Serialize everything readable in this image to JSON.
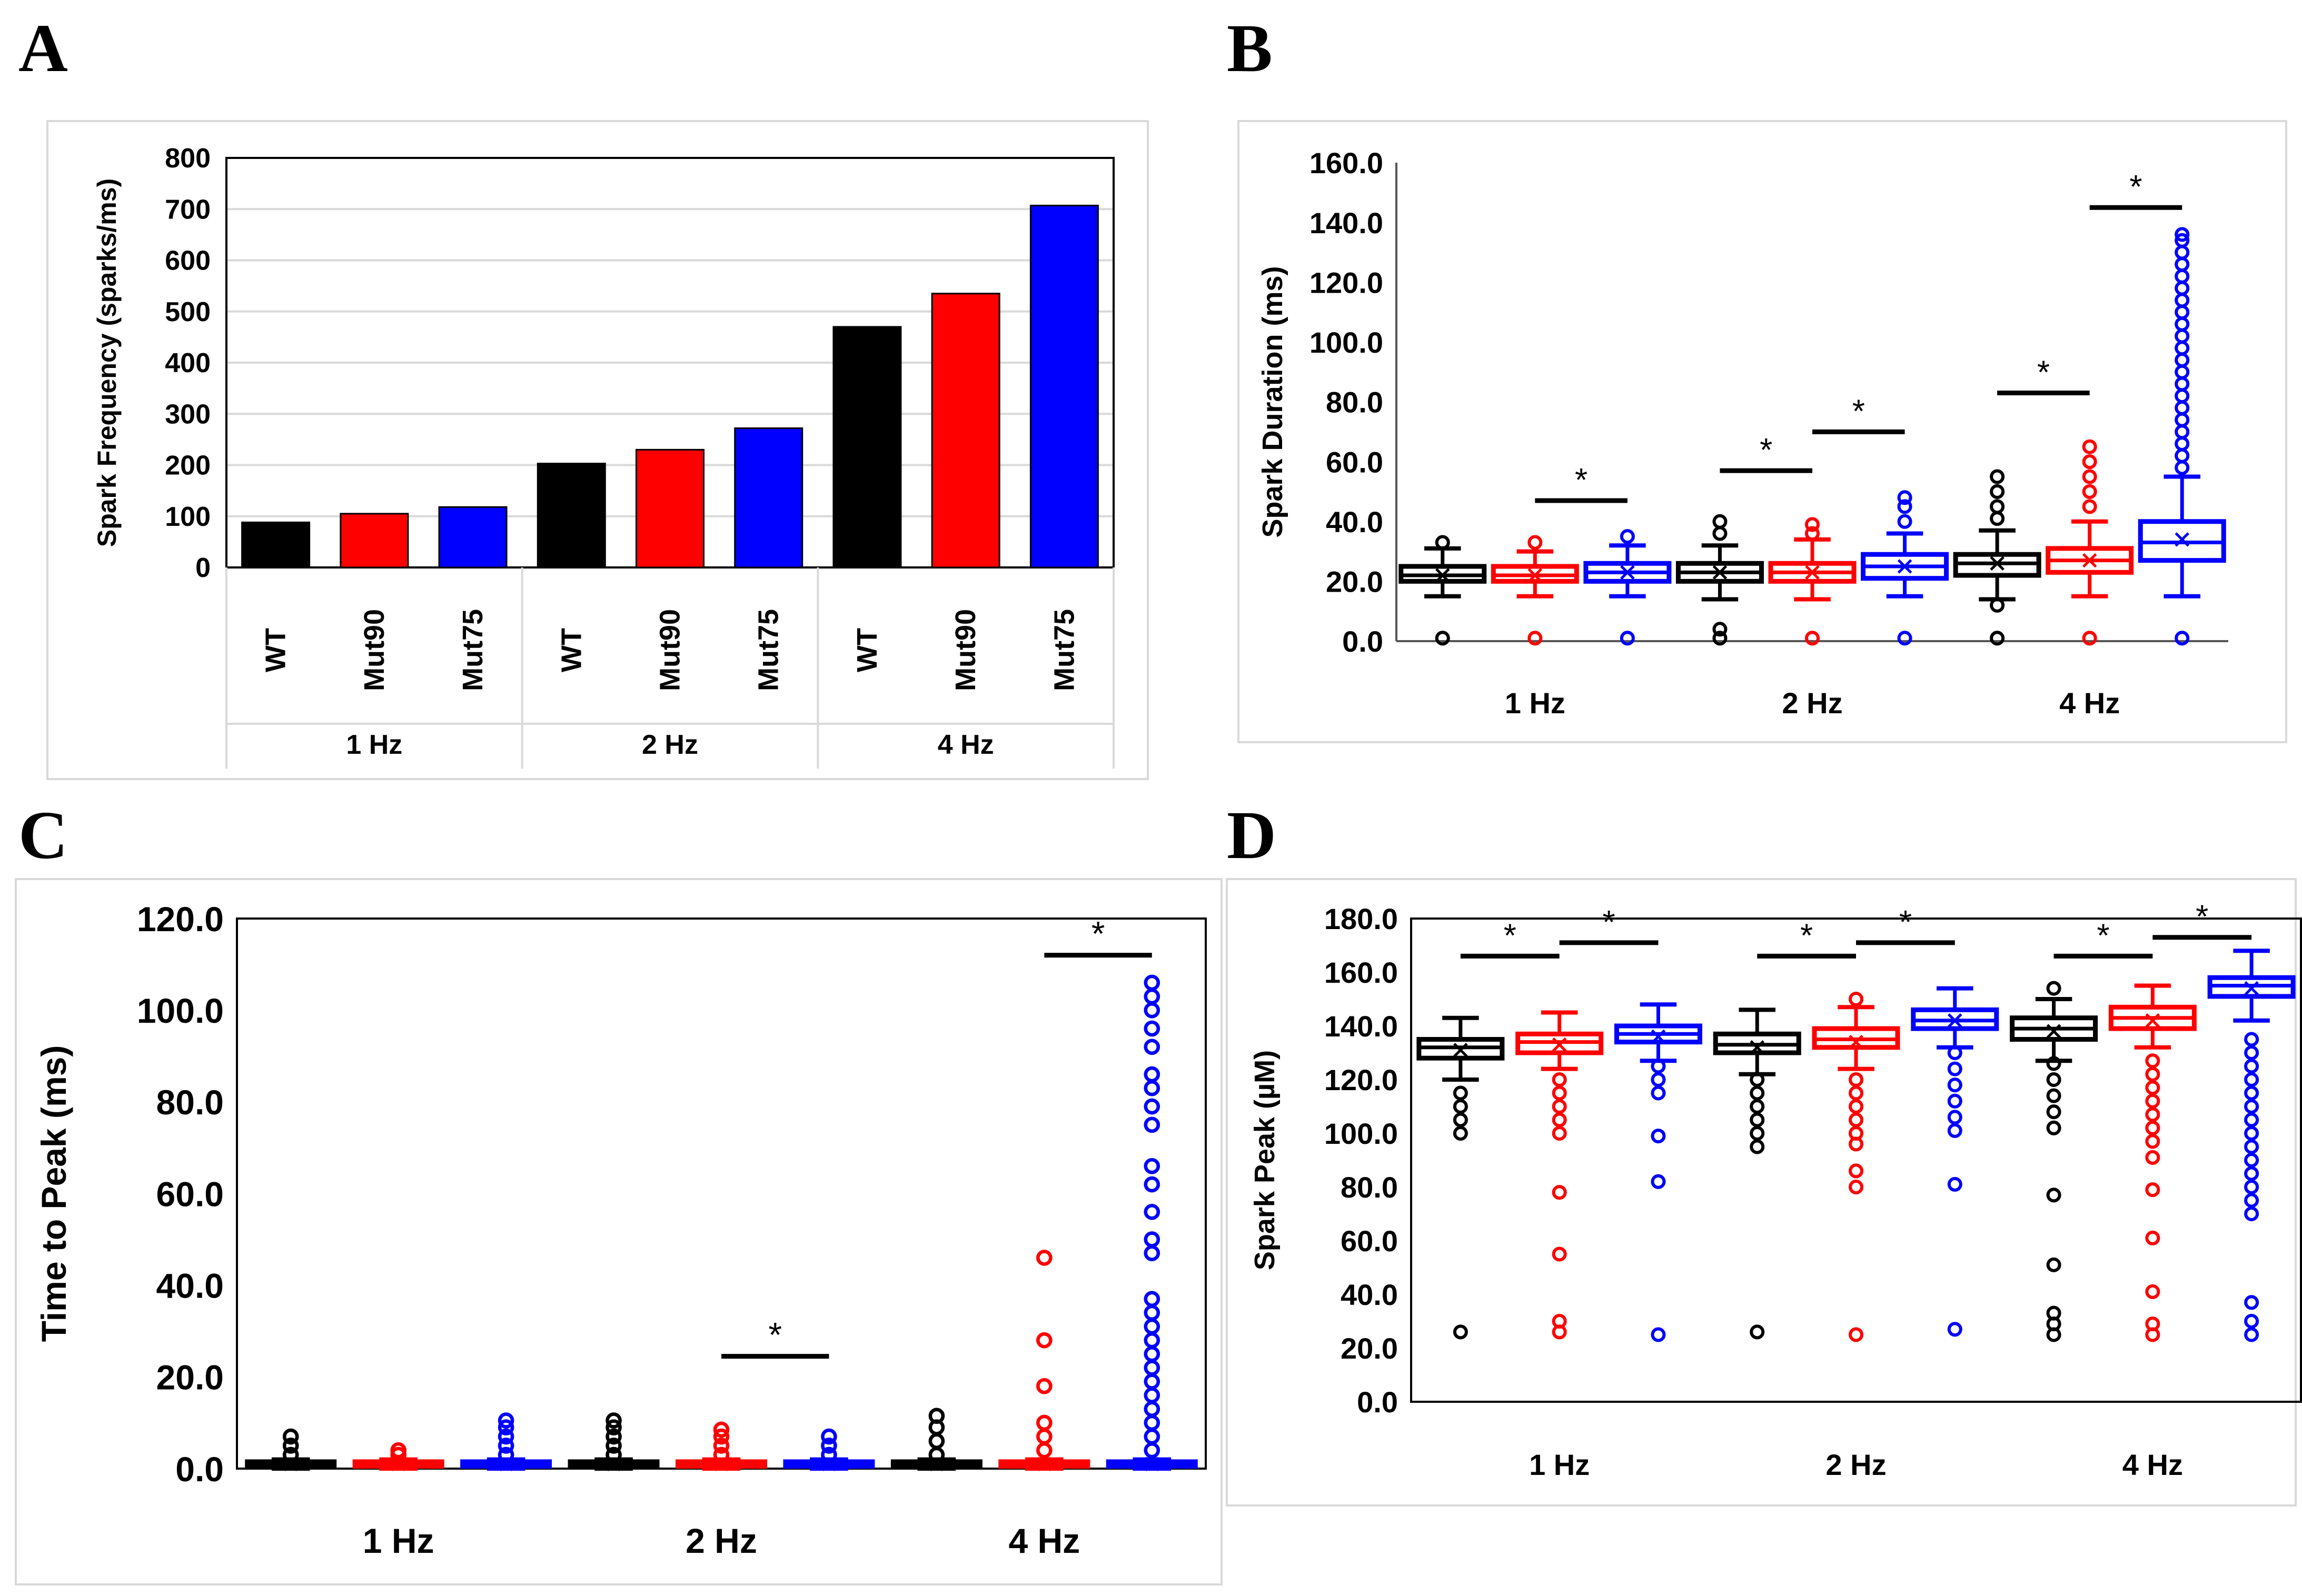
{
  "panels": {
    "A": {
      "letter": "A"
    },
    "B": {
      "letter": "B"
    },
    "C": {
      "letter": "C"
    },
    "D": {
      "letter": "D"
    }
  },
  "colors": {
    "WT": "#000000",
    "Mut90": "#ff0000",
    "Mut75": "#0000ff",
    "grid": "#d9d9d9"
  },
  "chart_data": [
    {
      "id": "A",
      "type": "bar",
      "ylabel": "Spark Frequency (sparks/ms)",
      "ylim": [
        0,
        800
      ],
      "yticks": [
        "0",
        "100",
        "200",
        "300",
        "400",
        "500",
        "600",
        "700",
        "800"
      ],
      "groups": [
        "1 Hz",
        "2 Hz",
        "4 Hz"
      ],
      "series_names": [
        "WT",
        "Mut90",
        "Mut75"
      ],
      "values": [
        [
          88,
          105,
          118
        ],
        [
          203,
          230,
          272
        ],
        [
          470,
          535,
          707
        ]
      ],
      "grid": true
    },
    {
      "id": "B",
      "type": "box",
      "ylabel": "Spark  Duration (ms)",
      "ylim": [
        0,
        160
      ],
      "yticks": [
        "0.0",
        "20.0",
        "40.0",
        "60.0",
        "80.0",
        "100.0",
        "120.0",
        "140.0",
        "160.0"
      ],
      "groups": [
        "1 Hz",
        "2 Hz",
        "4 Hz"
      ],
      "boxes": [
        {
          "group": 0,
          "series": "WT",
          "min": 15,
          "q1": 20,
          "median": 22,
          "q3": 25,
          "max": 31,
          "mean": 22,
          "outliers": [
            1,
            33
          ]
        },
        {
          "group": 0,
          "series": "Mut90",
          "min": 15,
          "q1": 20,
          "median": 22,
          "q3": 25,
          "max": 30,
          "mean": 22,
          "outliers": [
            1,
            33
          ]
        },
        {
          "group": 0,
          "series": "Mut75",
          "min": 15,
          "q1": 20,
          "median": 23,
          "q3": 26,
          "max": 32,
          "mean": 23,
          "outliers": [
            1,
            35
          ]
        },
        {
          "group": 1,
          "series": "WT",
          "min": 14,
          "q1": 20,
          "median": 23,
          "q3": 26,
          "max": 32,
          "mean": 23,
          "outliers": [
            1,
            4,
            36,
            40
          ]
        },
        {
          "group": 1,
          "series": "Mut90",
          "min": 14,
          "q1": 20,
          "median": 23,
          "q3": 26,
          "max": 34,
          "mean": 23,
          "outliers": [
            1,
            36,
            39
          ]
        },
        {
          "group": 1,
          "series": "Mut75",
          "min": 15,
          "q1": 21,
          "median": 25,
          "q3": 29,
          "max": 36,
          "mean": 25,
          "outliers": [
            1,
            40,
            45,
            48
          ]
        },
        {
          "group": 2,
          "series": "WT",
          "min": 14,
          "q1": 22,
          "median": 26,
          "q3": 29,
          "max": 37,
          "mean": 26,
          "outliers": [
            1,
            12,
            41,
            45,
            50,
            55
          ]
        },
        {
          "group": 2,
          "series": "Mut90",
          "min": 15,
          "q1": 23,
          "median": 27,
          "q3": 31,
          "max": 40,
          "mean": 27,
          "outliers": [
            1,
            45,
            50,
            55,
            60,
            65
          ]
        },
        {
          "group": 2,
          "series": "Mut75",
          "min": 15,
          "q1": 27,
          "median": 33,
          "q3": 40,
          "max": 55,
          "mean": 34,
          "outliers": [
            1,
            58,
            62,
            66,
            70,
            74,
            78,
            82,
            86,
            90,
            94,
            98,
            102,
            106,
            110,
            114,
            118,
            122,
            126,
            130,
            134,
            136
          ]
        }
      ],
      "significance": [
        {
          "from": [
            0,
            1
          ],
          "to": [
            0,
            2
          ],
          "level": 47,
          "label": "*"
        },
        {
          "from": [
            1,
            0
          ],
          "to": [
            1,
            1
          ],
          "level": 57,
          "label": "*"
        },
        {
          "from": [
            1,
            1
          ],
          "to": [
            1,
            2
          ],
          "level": 70,
          "label": "*"
        },
        {
          "from": [
            2,
            0
          ],
          "to": [
            2,
            1
          ],
          "level": 83,
          "label": "*"
        },
        {
          "from": [
            2,
            1
          ],
          "to": [
            2,
            2
          ],
          "level": 145,
          "label": "*"
        }
      ]
    },
    {
      "id": "C",
      "type": "box",
      "ylabel": "Time to Peak (ms)",
      "ylim": [
        0,
        120
      ],
      "yticks": [
        "0.0",
        "20.0",
        "40.0",
        "60.0",
        "80.0",
        "100.0",
        "120.0"
      ],
      "groups": [
        "1 Hz",
        "2 Hz",
        "4 Hz"
      ],
      "boxes": [
        {
          "group": 0,
          "series": "WT",
          "min": 0,
          "q1": 0.5,
          "median": 1,
          "q3": 1.5,
          "max": 2,
          "mean": 1,
          "outliers": [
            3,
            5,
            7
          ]
        },
        {
          "group": 0,
          "series": "Mut90",
          "min": 0,
          "q1": 0.5,
          "median": 1,
          "q3": 1.5,
          "max": 2,
          "mean": 1,
          "outliers": [
            3,
            4
          ]
        },
        {
          "group": 0,
          "series": "Mut75",
          "min": 0,
          "q1": 0.5,
          "median": 1,
          "q3": 1.5,
          "max": 2,
          "mean": 1,
          "outliers": [
            3,
            5,
            7,
            9,
            10.5
          ]
        },
        {
          "group": 1,
          "series": "WT",
          "min": 0,
          "q1": 0.5,
          "median": 1,
          "q3": 1.5,
          "max": 2,
          "mean": 1,
          "outliers": [
            3,
            5,
            7,
            9,
            10.5
          ]
        },
        {
          "group": 1,
          "series": "Mut90",
          "min": 0,
          "q1": 0.5,
          "median": 1,
          "q3": 1.5,
          "max": 2,
          "mean": 1,
          "outliers": [
            3,
            5,
            7,
            8.5
          ]
        },
        {
          "group": 1,
          "series": "Mut75",
          "min": 0,
          "q1": 0.5,
          "median": 1,
          "q3": 1.5,
          "max": 2,
          "mean": 1,
          "outliers": [
            3,
            5,
            7
          ]
        },
        {
          "group": 2,
          "series": "WT",
          "min": 0,
          "q1": 0.5,
          "median": 1,
          "q3": 1.5,
          "max": 2,
          "mean": 1,
          "outliers": [
            3,
            6,
            9,
            11.5
          ]
        },
        {
          "group": 2,
          "series": "Mut90",
          "min": 0,
          "q1": 0.5,
          "median": 1,
          "q3": 1.5,
          "max": 2,
          "mean": 1,
          "outliers": [
            4,
            7,
            10,
            18,
            28,
            46
          ]
        },
        {
          "group": 2,
          "series": "Mut75",
          "min": 0,
          "q1": 0.5,
          "median": 1,
          "q3": 1.5,
          "max": 2,
          "mean": 1,
          "outliers": [
            4,
            7,
            10,
            13,
            16,
            19,
            22,
            25,
            28,
            31,
            34,
            37,
            47,
            50,
            56,
            62,
            66,
            75,
            79,
            83,
            86,
            92,
            96,
            100,
            103,
            106
          ]
        }
      ],
      "significance": [
        {
          "from": [
            1,
            1
          ],
          "to": [
            1,
            2
          ],
          "level": 24.5,
          "label": "*"
        },
        {
          "from": [
            2,
            1
          ],
          "to": [
            2,
            2
          ],
          "level": 112,
          "label": "*"
        }
      ]
    },
    {
      "id": "D",
      "type": "box",
      "ylabel": "Spark  Peak (µM)",
      "ylim": [
        0,
        180
      ],
      "yticks": [
        "0.0",
        "20.0",
        "40.0",
        "60.0",
        "80.0",
        "100.0",
        "120.0",
        "140.0",
        "160.0",
        "180.0"
      ],
      "groups": [
        "1 Hz",
        "2 Hz",
        "4 Hz"
      ],
      "boxes": [
        {
          "group": 0,
          "series": "WT",
          "min": 120,
          "q1": 128,
          "median": 132,
          "q3": 135,
          "max": 143,
          "mean": 131,
          "outliers": [
            26,
            100,
            105,
            110,
            115
          ]
        },
        {
          "group": 0,
          "series": "Mut90",
          "min": 124,
          "q1": 130,
          "median": 134,
          "q3": 137,
          "max": 145,
          "mean": 133,
          "outliers": [
            26,
            30,
            55,
            78,
            100,
            105,
            110,
            115,
            120
          ]
        },
        {
          "group": 0,
          "series": "Mut75",
          "min": 127,
          "q1": 134,
          "median": 137,
          "q3": 140,
          "max": 148,
          "mean": 136,
          "outliers": [
            25,
            82,
            99,
            115,
            120,
            125
          ]
        },
        {
          "group": 1,
          "series": "WT",
          "min": 122,
          "q1": 130,
          "median": 133,
          "q3": 137,
          "max": 146,
          "mean": 132,
          "outliers": [
            26,
            95,
            100,
            105,
            110,
            115,
            120
          ]
        },
        {
          "group": 1,
          "series": "Mut90",
          "min": 124,
          "q1": 132,
          "median": 135,
          "q3": 139,
          "max": 147,
          "mean": 134,
          "outliers": [
            25,
            80,
            86,
            96,
            100,
            105,
            110,
            115,
            120,
            150
          ]
        },
        {
          "group": 1,
          "series": "Mut75",
          "min": 132,
          "q1": 139,
          "median": 142,
          "q3": 146,
          "max": 154,
          "mean": 142,
          "outliers": [
            27,
            81,
            101,
            106,
            112,
            118,
            124,
            130
          ]
        },
        {
          "group": 2,
          "series": "WT",
          "min": 127,
          "q1": 135,
          "median": 139,
          "q3": 143,
          "max": 150,
          "mean": 138,
          "outliers": [
            25,
            29,
            33,
            51,
            77,
            102,
            108,
            114,
            120,
            126,
            154
          ]
        },
        {
          "group": 2,
          "series": "Mut90",
          "min": 132,
          "q1": 139,
          "median": 143,
          "q3": 147,
          "max": 155,
          "mean": 142,
          "outliers": [
            25,
            29,
            41,
            61,
            79,
            91,
            97,
            102,
            107,
            112,
            117,
            122,
            127
          ]
        },
        {
          "group": 2,
          "series": "Mut75",
          "min": 142,
          "q1": 151,
          "median": 155,
          "q3": 158,
          "max": 168,
          "mean": 154,
          "outliers": [
            25,
            30,
            37,
            70,
            75,
            80,
            85,
            90,
            95,
            100,
            105,
            110,
            115,
            120,
            125,
            130,
            135
          ]
        }
      ],
      "significance": [
        {
          "from": [
            0,
            0
          ],
          "to": [
            0,
            1
          ],
          "level": 166,
          "label": "*"
        },
        {
          "from": [
            0,
            1
          ],
          "to": [
            0,
            2
          ],
          "level": 171,
          "label": "*"
        },
        {
          "from": [
            1,
            0
          ],
          "to": [
            1,
            1
          ],
          "level": 166,
          "label": "*"
        },
        {
          "from": [
            1,
            1
          ],
          "to": [
            1,
            2
          ],
          "level": 171,
          "label": "*"
        },
        {
          "from": [
            2,
            0
          ],
          "to": [
            2,
            1
          ],
          "level": 166,
          "label": "*"
        },
        {
          "from": [
            2,
            1
          ],
          "to": [
            2,
            2
          ],
          "level": 173,
          "label": "*"
        }
      ]
    }
  ]
}
